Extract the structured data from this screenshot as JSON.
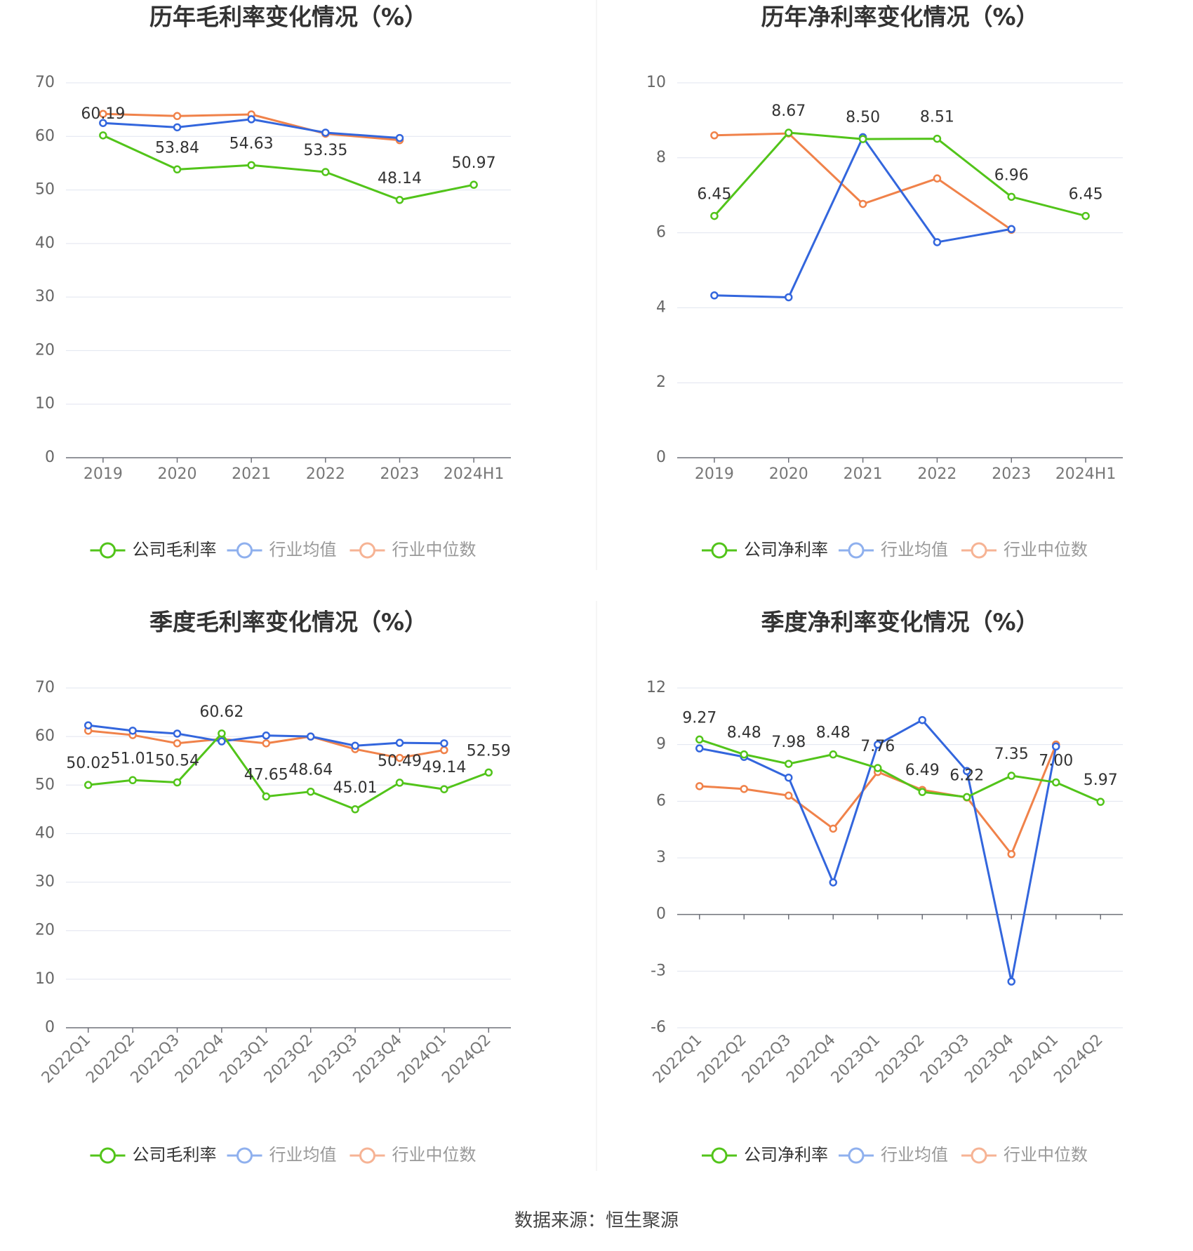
{
  "footer": "数据来源：恒生聚源",
  "chart_data": [
    {
      "type": "line",
      "title": "历年毛利率变化情况（%）",
      "categories": [
        "2019",
        "2020",
        "2021",
        "2022",
        "2023",
        "2024H1"
      ],
      "ylim": [
        0,
        70
      ],
      "yticks": [
        0,
        10,
        20,
        30,
        40,
        50,
        60,
        70
      ],
      "grid": true,
      "legend_position": "bottom",
      "series": [
        {
          "name": "公司毛利率",
          "color": "#52c41a",
          "values": [
            60.19,
            53.84,
            54.63,
            53.35,
            48.14,
            50.97
          ],
          "labels": [
            "60.19",
            "53.84",
            "54.63",
            "53.35",
            "48.14",
            "50.97"
          ]
        },
        {
          "name": "行业均值",
          "color": "#3366dd",
          "values": [
            62.5,
            61.7,
            63.2,
            60.7,
            59.7,
            null
          ]
        },
        {
          "name": "行业中位数",
          "color": "#f0824a",
          "values": [
            64.2,
            63.8,
            64.1,
            60.5,
            59.3,
            null
          ]
        }
      ]
    },
    {
      "type": "line",
      "title": "历年净利率变化情况（%）",
      "categories": [
        "2019",
        "2020",
        "2021",
        "2022",
        "2023",
        "2024H1"
      ],
      "ylim": [
        0,
        10
      ],
      "yticks": [
        0,
        2,
        4,
        6,
        8,
        10
      ],
      "grid": true,
      "legend_position": "bottom",
      "series": [
        {
          "name": "公司净利率",
          "color": "#52c41a",
          "values": [
            6.45,
            8.67,
            8.5,
            8.51,
            6.96,
            6.45
          ],
          "labels": [
            "6.45",
            "8.67",
            "8.50",
            "8.51",
            "6.96",
            "6.45"
          ]
        },
        {
          "name": "行业均值",
          "color": "#3366dd",
          "values": [
            4.33,
            4.28,
            8.55,
            5.75,
            6.1,
            null
          ]
        },
        {
          "name": "行业中位数",
          "color": "#f0824a",
          "values": [
            8.6,
            8.65,
            6.77,
            7.45,
            6.08,
            null
          ]
        }
      ]
    },
    {
      "type": "line",
      "title": "季度毛利率变化情况（%）",
      "categories": [
        "2022Q1",
        "2022Q2",
        "2022Q3",
        "2022Q4",
        "2023Q1",
        "2023Q2",
        "2023Q3",
        "2023Q4",
        "2024Q1",
        "2024Q2"
      ],
      "ylim": [
        0,
        70
      ],
      "yticks": [
        0,
        10,
        20,
        30,
        40,
        50,
        60,
        70
      ],
      "grid": true,
      "legend_position": "bottom",
      "series": [
        {
          "name": "公司毛利率",
          "color": "#52c41a",
          "values": [
            50.02,
            51.01,
            50.54,
            60.62,
            47.65,
            48.64,
            45.01,
            50.49,
            49.14,
            52.59
          ],
          "labels": [
            "50.02",
            "51.01",
            "50.54",
            "60.62",
            "47.65",
            "48.64",
            "45.01",
            "50.49",
            "49.14",
            "52.59"
          ]
        },
        {
          "name": "行业均值",
          "color": "#3366dd",
          "values": [
            62.3,
            61.2,
            60.6,
            59.0,
            60.2,
            60.0,
            58.1,
            58.7,
            58.6,
            null
          ]
        },
        {
          "name": "行业中位数",
          "color": "#f0824a",
          "values": [
            61.2,
            60.3,
            58.6,
            59.5,
            58.6,
            60.0,
            57.4,
            55.6,
            57.2,
            null
          ]
        }
      ]
    },
    {
      "type": "line",
      "title": "季度净利率变化情况（%）",
      "categories": [
        "2022Q1",
        "2022Q2",
        "2022Q3",
        "2022Q4",
        "2023Q1",
        "2023Q2",
        "2023Q3",
        "2023Q4",
        "2024Q1",
        "2024Q2"
      ],
      "ylim": [
        -6,
        12
      ],
      "yticks": [
        -6,
        -3,
        0,
        3,
        6,
        9,
        12
      ],
      "grid": true,
      "legend_position": "bottom",
      "series": [
        {
          "name": "公司净利率",
          "color": "#52c41a",
          "values": [
            9.27,
            8.48,
            7.98,
            8.48,
            7.76,
            6.49,
            6.22,
            7.35,
            7.0,
            5.97
          ],
          "labels": [
            "9.27",
            "8.48",
            "7.98",
            "8.48",
            "7.76",
            "6.49",
            "6.22",
            "7.35",
            "7.00",
            "5.97"
          ]
        },
        {
          "name": "行业均值",
          "color": "#3366dd",
          "values": [
            8.8,
            8.35,
            7.25,
            1.7,
            9.0,
            10.3,
            7.6,
            -3.55,
            8.9,
            null
          ]
        },
        {
          "name": "行业中位数",
          "color": "#f0824a",
          "values": [
            6.8,
            6.65,
            6.3,
            4.55,
            7.55,
            6.6,
            6.2,
            3.2,
            9.0,
            null
          ]
        }
      ]
    }
  ]
}
